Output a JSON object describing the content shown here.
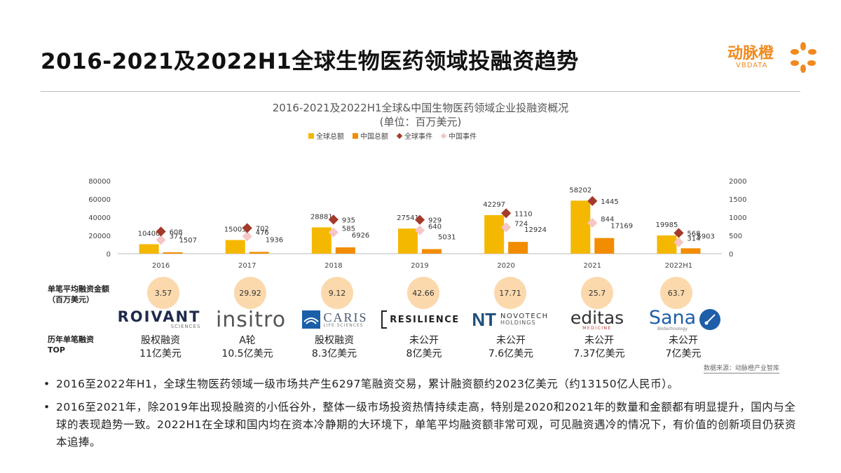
{
  "page": {
    "title": "2016-2021及2022H1全球生物医药领域投融资趋势",
    "logo_cn": "动脉橙",
    "logo_en": "VBDATA"
  },
  "chart_data": {
    "type": "bar",
    "title": "2016-2021及2022H1全球&中国生物医药领域企业投融资概况",
    "unit": "(单位：百万美元)",
    "categories": [
      "2016",
      "2017",
      "2018",
      "2019",
      "2020",
      "2021",
      "2022H1"
    ],
    "ylim": [
      0,
      80000
    ],
    "yticks": [
      "0",
      "20000",
      "40000",
      "60000",
      "80000"
    ],
    "y2lim": [
      0,
      2000
    ],
    "y2ticks": [
      "0",
      "500",
      "1000",
      "1500",
      "2000"
    ],
    "legend_position": "top-center",
    "series": [
      {
        "name": "全球总额",
        "kind": "bar",
        "axis": "left",
        "color": "#f5b800",
        "values": [
          10400,
          15005,
          28881,
          27541,
          42297,
          58202,
          19985
        ],
        "labels": [
          "10400",
          "15005",
          "28881",
          "27541",
          "42297",
          "58202",
          "19985"
        ]
      },
      {
        "name": "中国总额",
        "kind": "bar",
        "axis": "left",
        "color": "#f28c00",
        "values": [
          1507,
          1936,
          6926,
          5031,
          12924,
          17169,
          5903
        ],
        "labels": [
          "1507",
          "1936",
          "6926",
          "5031",
          "12924",
          "17169",
          "5903"
        ]
      },
      {
        "name": "全球事件",
        "kind": "point",
        "axis": "right",
        "color": "#a33a2a",
        "values": [
          608,
          702,
          935,
          929,
          1110,
          1445,
          568
        ],
        "labels": [
          "608",
          "702",
          "935",
          "929",
          "1110",
          "1445",
          "568"
        ]
      },
      {
        "name": "中国事件",
        "kind": "point",
        "axis": "right",
        "color": "#f6c6c6",
        "values": [
          377,
          476,
          585,
          640,
          724,
          844,
          314
        ],
        "labels": [
          "377",
          "476",
          "585",
          "640",
          "724",
          "844",
          "314"
        ]
      }
    ]
  },
  "rows": {
    "avg_label_line1": "单笔平均融资金额",
    "avg_label_line2": "（百万美元）",
    "avg_values": [
      "3.57",
      "29.92",
      "9.12",
      "42.66",
      "17.71",
      "25.7",
      "63.7"
    ],
    "top_label_line1": "历年单笔融资",
    "top_label_line2": "TOP"
  },
  "companies": [
    {
      "name": "ROIVANT",
      "sub": "SCIENCES",
      "round": "股权融资",
      "amount": "11亿美元",
      "icon": "roivant-logo"
    },
    {
      "name": "insitro",
      "sub": "",
      "round": "A轮",
      "amount": "10.5亿美元",
      "icon": "insitro-logo"
    },
    {
      "name": "CARIS",
      "sub": "LIFE SCIENCES",
      "round": "股权融资",
      "amount": "8.3亿美元",
      "icon": "caris-logo"
    },
    {
      "name": "RESILIENCE",
      "sub": "",
      "round": "未公开",
      "amount": "8亿美元",
      "icon": "resilience-logo"
    },
    {
      "name": "NOVOTECH",
      "sub": "HOLDINGS",
      "round": "未公开",
      "amount": "7.6亿美元",
      "icon": "novotech-logo"
    },
    {
      "name": "editas",
      "sub": "MEDICINE",
      "round": "未公开",
      "amount": "7.37亿美元",
      "icon": "editas-logo"
    },
    {
      "name": "Sana",
      "sub": "Biotechnology",
      "round": "未公开",
      "amount": "7亿美元",
      "icon": "sana-logo"
    }
  ],
  "source": "数据来源：动脉橙产业智库",
  "bullets": [
    "2016至2022年H1，全球生物医药领域一级市场共产生6297笔融资交易，累计融资额约2023亿美元（约13150亿人民币）。",
    "2016至2021年，除2019年出现投融资的小低谷外，整体一级市场投资热情持续走高，特别是2020和2021年的数量和金额都有明显提升，国内与全球的表现趋势一致。2022H1在全球和国内均在资本冷静期的大环境下，单笔平均融资额非常可观，可见融资遇冷的情况下，有价值的创新项目仍获资本追捧。"
  ]
}
